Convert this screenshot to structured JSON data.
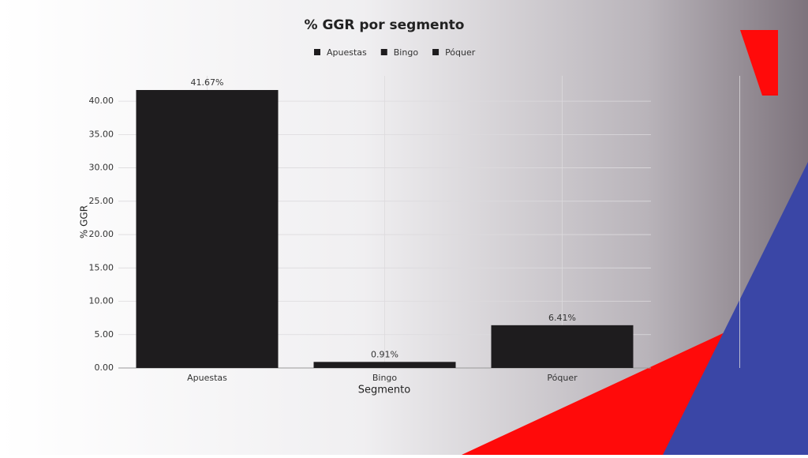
{
  "chart_data": {
    "type": "bar",
    "title": "% GGR por segmento",
    "categories": [
      "Apuestas",
      "Bingo",
      "Póquer"
    ],
    "values": [
      41.67,
      0.91,
      6.41
    ],
    "value_labels": [
      "41.67%",
      "0.91%",
      "6.41%"
    ],
    "color": "#1e1c1e",
    "x_label": "Segmento",
    "y_label": "% GGR",
    "ylim": [
      0,
      43.8
    ],
    "yticks": [
      {
        "value": 0,
        "label": "0.00"
      },
      {
        "value": 5,
        "label": "5.00"
      },
      {
        "value": 10,
        "label": "10.00"
      },
      {
        "value": 15,
        "label": "15.00"
      },
      {
        "value": 20,
        "label": "20.00"
      },
      {
        "value": 25,
        "label": "25.00"
      },
      {
        "value": 30,
        "label": "30.00"
      },
      {
        "value": 35,
        "label": "35.00"
      },
      {
        "value": 40,
        "label": "40.00"
      }
    ],
    "grid": true
  }
}
